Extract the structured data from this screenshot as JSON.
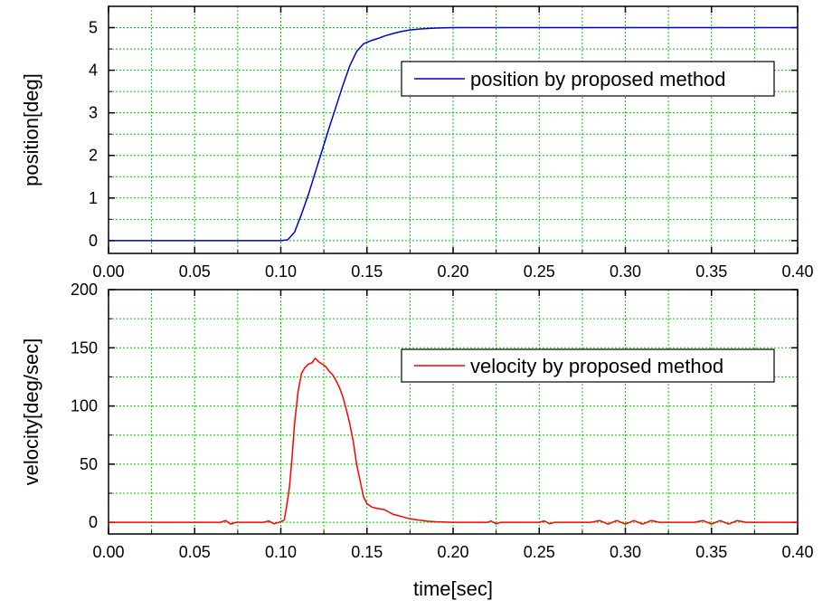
{
  "chart_data": [
    {
      "type": "line",
      "ylabel": "position[deg]",
      "xlabel": "",
      "xlim": [
        0,
        0.4
      ],
      "ylim": [
        -0.3,
        5.5
      ],
      "x_ticks": [
        "0.00",
        "0.05",
        "0.10",
        "0.15",
        "0.20",
        "0.25",
        "0.30",
        "0.35",
        "0.40"
      ],
      "y_ticks": [
        "0",
        "1",
        "2",
        "3",
        "4",
        "5"
      ],
      "grid": true,
      "grid_color": "#00cc00",
      "legend_position": "upper-right",
      "series": [
        {
          "name": "position by proposed method",
          "color": "#0000cc",
          "x": [
            0,
            0.1,
            0.104,
            0.108,
            0.112,
            0.116,
            0.12,
            0.124,
            0.128,
            0.132,
            0.136,
            0.14,
            0.144,
            0.148,
            0.152,
            0.156,
            0.16,
            0.165,
            0.17,
            0.175,
            0.18,
            0.185,
            0.19,
            0.195,
            0.2,
            0.25,
            0.3,
            0.35,
            0.4
          ],
          "y": [
            0,
            0,
            0.02,
            0.2,
            0.62,
            1.08,
            1.6,
            2.12,
            2.64,
            3.14,
            3.64,
            4.1,
            4.44,
            4.62,
            4.69,
            4.74,
            4.8,
            4.86,
            4.91,
            4.945,
            4.965,
            4.98,
            4.99,
            4.995,
            5.0,
            5.0,
            5.0,
            5.0,
            5.0
          ]
        }
      ]
    },
    {
      "type": "line",
      "ylabel": "velocity[deg/sec]",
      "xlabel": "time[sec]",
      "xlim": [
        0,
        0.4
      ],
      "ylim": [
        -10,
        200
      ],
      "x_ticks": [
        "0.00",
        "0.05",
        "0.10",
        "0.15",
        "0.20",
        "0.25",
        "0.30",
        "0.35",
        "0.40"
      ],
      "y_ticks": [
        "0",
        "50",
        "100",
        "150",
        "200"
      ],
      "grid": true,
      "grid_color": "#00cc00",
      "legend_position": "upper-right",
      "series": [
        {
          "name": "velocity by proposed method",
          "color": "#ff0000",
          "x": [
            0,
            0.065,
            0.068,
            0.071,
            0.074,
            0.09,
            0.093,
            0.096,
            0.099,
            0.102,
            0.1035,
            0.105,
            0.1065,
            0.108,
            0.11,
            0.112,
            0.114,
            0.116,
            0.118,
            0.12,
            0.122,
            0.124,
            0.126,
            0.128,
            0.13,
            0.132,
            0.134,
            0.136,
            0.138,
            0.14,
            0.142,
            0.144,
            0.146,
            0.148,
            0.15,
            0.153,
            0.156,
            0.16,
            0.165,
            0.17,
            0.175,
            0.18,
            0.185,
            0.19,
            0.2,
            0.21,
            0.22,
            0.222,
            0.225,
            0.228,
            0.25,
            0.253,
            0.256,
            0.259,
            0.28,
            0.285,
            0.29,
            0.295,
            0.3,
            0.305,
            0.31,
            0.315,
            0.32,
            0.33,
            0.34,
            0.345,
            0.35,
            0.355,
            0.36,
            0.365,
            0.37,
            0.38,
            0.4
          ],
          "y": [
            0,
            0,
            1.5,
            -1.5,
            0,
            0,
            1.2,
            -1.2,
            0,
            2,
            15,
            30,
            55,
            85,
            112,
            128,
            133,
            136,
            137,
            141,
            138,
            136,
            134,
            130,
            127,
            122,
            116,
            108,
            97,
            85,
            70,
            50,
            36,
            22,
            16,
            13,
            12,
            11,
            7,
            5,
            3,
            2,
            1,
            0.5,
            0,
            0,
            0,
            1.2,
            -1.2,
            0,
            0,
            1.2,
            -1.2,
            0,
            0,
            1.5,
            -1.5,
            1.5,
            -1.5,
            1.5,
            -1.5,
            1.5,
            0,
            0,
            0,
            1.5,
            -1.5,
            1.5,
            -1.5,
            1.5,
            0,
            0,
            0
          ]
        }
      ]
    }
  ]
}
